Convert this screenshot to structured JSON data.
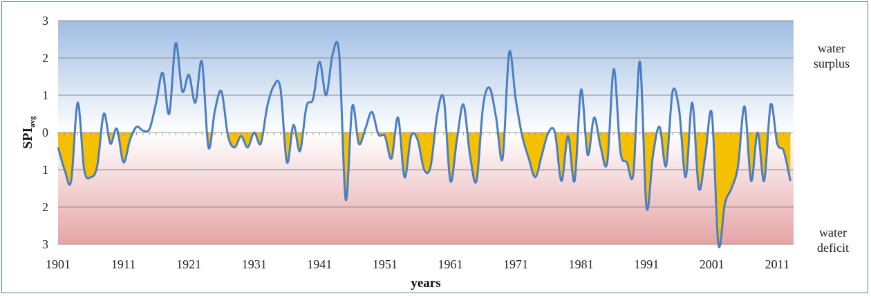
{
  "chart_data": {
    "type": "area",
    "x_label": "years",
    "y_label_main": "SPI",
    "y_label_sub": "avg",
    "y_ticks": [
      "3",
      "2",
      "1",
      "0",
      "1",
      "2",
      "3"
    ],
    "y_range": [
      -3,
      3
    ],
    "x_ticks": [
      "1901",
      "1911",
      "1921",
      "1931",
      "1941",
      "1951",
      "1961",
      "1971",
      "1981",
      "1991",
      "2001",
      "2011"
    ],
    "x_range": [
      1901,
      2013.5
    ],
    "annotations": {
      "surplus": [
        "water",
        "surplus"
      ],
      "deficit": [
        "water",
        "deficit"
      ]
    },
    "grid": "horizontal",
    "colors": {
      "line": "#4a7ec4",
      "deficit_fill": "#f5c000",
      "surplus_band": "#a9c4e4",
      "deficit_band": "#e8aaaa",
      "gridline": "#8a8a8a"
    },
    "series": [
      {
        "name": "",
        "x": [
          1901,
          1902,
          1903,
          1904,
          1905,
          1906,
          1907,
          1908,
          1909,
          1910,
          1911,
          1912,
          1913,
          1914,
          1915,
          1916,
          1917,
          1918,
          1919,
          1920,
          1921,
          1922,
          1923,
          1924,
          1925,
          1926,
          1927,
          1928,
          1929,
          1930,
          1931,
          1932,
          1933,
          1934,
          1935,
          1936,
          1937,
          1938,
          1939,
          1940,
          1941,
          1942,
          1943,
          1944,
          1945,
          1946,
          1947,
          1948,
          1949,
          1950,
          1951,
          1952,
          1953,
          1954,
          1955,
          1956,
          1957,
          1958,
          1959,
          1960,
          1961,
          1962,
          1963,
          1964,
          1965,
          1966,
          1967,
          1968,
          1969,
          1970,
          1971,
          1972,
          1973,
          1974,
          1975,
          1976,
          1977,
          1978,
          1979,
          1980,
          1981,
          1982,
          1983,
          1984,
          1985,
          1986,
          1987,
          1988,
          1989,
          1990,
          1991,
          1992,
          1993,
          1994,
          1995,
          1996,
          1997,
          1998,
          1999,
          2000,
          2001,
          2002,
          2003,
          2004,
          2005,
          2006,
          2007,
          2008,
          2009,
          2010,
          2011,
          2012,
          2013
        ],
        "y": [
          -0.4,
          -1.0,
          -1.3,
          0.8,
          -1.0,
          -1.2,
          -0.9,
          0.5,
          -0.3,
          0.1,
          -0.8,
          -0.2,
          0.15,
          0.05,
          0.1,
          0.8,
          1.6,
          0.5,
          2.4,
          1.1,
          1.55,
          0.8,
          1.9,
          -0.4,
          0.6,
          1.1,
          -0.1,
          -0.4,
          -0.1,
          -0.4,
          0.0,
          -0.3,
          0.7,
          1.25,
          1.2,
          -0.8,
          0.2,
          -0.5,
          0.7,
          0.9,
          1.9,
          1.0,
          2.1,
          2.1,
          -1.8,
          0.7,
          -0.3,
          0.1,
          0.55,
          -0.05,
          -0.1,
          -0.7,
          0.4,
          -1.2,
          -0.1,
          -0.2,
          -1.0,
          -0.9,
          0.5,
          0.9,
          -1.3,
          -0.2,
          0.75,
          -0.6,
          -1.3,
          0.7,
          1.2,
          0.4,
          -0.7,
          2.15,
          0.9,
          -0.1,
          -0.7,
          -1.2,
          -0.6,
          0.0,
          0.0,
          -1.3,
          -0.1,
          -1.3,
          1.15,
          -0.6,
          0.4,
          -0.4,
          -0.8,
          1.7,
          -0.5,
          -0.8,
          -1.1,
          1.9,
          -2.0,
          -0.6,
          0.15,
          -0.9,
          1.1,
          0.6,
          -1.2,
          0.8,
          -1.5,
          -0.6,
          0.5,
          -3.0,
          -1.9,
          -1.5,
          -0.9,
          0.7,
          -1.3,
          0.0,
          -1.3,
          0.75,
          -0.3,
          -0.5,
          -1.3
        ]
      }
    ]
  }
}
